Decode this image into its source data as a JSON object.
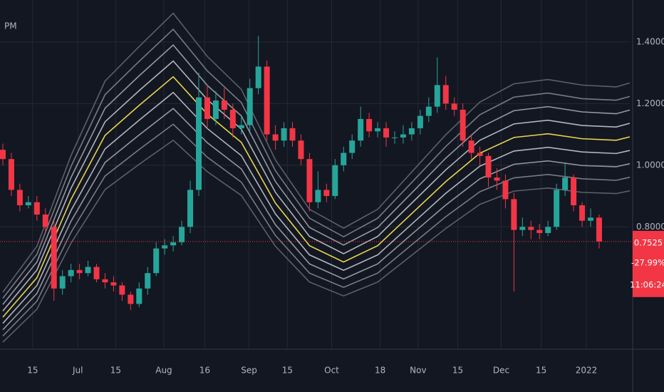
{
  "chart_data": {
    "type": "candlestick",
    "header_text": "PM",
    "up_color": "#26a69a",
    "down_color": "#f23645",
    "grid": true,
    "ylim": [
      0.403,
      1.536
    ],
    "yticks": [
      {
        "value": 0.8,
        "label": "0.8000"
      },
      {
        "value": 1.0,
        "label": "1.0000"
      },
      {
        "value": 1.2,
        "label": "1.2000"
      },
      {
        "value": 1.4,
        "label": "1.4000"
      }
    ],
    "xlim": [
      -0.333,
      73.6
    ],
    "xticks": [
      {
        "value": 3.5,
        "label": "15"
      },
      {
        "value": 8.8,
        "label": "Jul"
      },
      {
        "value": 13.25,
        "label": "15"
      },
      {
        "value": 18.9,
        "label": "Aug"
      },
      {
        "value": 23.7,
        "label": "16"
      },
      {
        "value": 28.9,
        "label": "Sep"
      },
      {
        "value": 33.4,
        "label": "15"
      },
      {
        "value": 38.6,
        "label": "Oct"
      },
      {
        "value": 44.3,
        "label": "18"
      },
      {
        "value": 48.75,
        "label": "Nov"
      },
      {
        "value": 53.4,
        "label": "15"
      },
      {
        "value": 58.5,
        "label": "Dec"
      },
      {
        "value": 63.2,
        "label": "15"
      },
      {
        "value": 68.5,
        "label": "2022"
      }
    ],
    "open": [
      1.05,
      1.02,
      0.92,
      0.87,
      0.88,
      0.84,
      0.8,
      0.6,
      0.64,
      0.66,
      0.65,
      0.67,
      0.63,
      0.62,
      0.61,
      0.58,
      0.55,
      0.6,
      0.65,
      0.73,
      0.74,
      0.75,
      0.8,
      0.92,
      1.22,
      1.15,
      1.21,
      1.18,
      1.12,
      1.13,
      1.25,
      1.32,
      1.1,
      1.08,
      1.12,
      1.08,
      1.02,
      0.88,
      0.92,
      0.9,
      1.0,
      1.04,
      1.08,
      1.15,
      1.11,
      1.12,
      1.09,
      1.09,
      1.1,
      1.12,
      1.16,
      1.19,
      1.26,
      1.2,
      1.18,
      1.08,
      1.04,
      1.03,
      0.96,
      0.95,
      0.89,
      0.79,
      0.8,
      0.79,
      0.78,
      0.8,
      0.92,
      0.96,
      0.87,
      0.82,
      0.83
    ],
    "high": [
      1.07,
      1.04,
      0.94,
      0.9,
      0.9,
      0.86,
      0.82,
      0.66,
      0.68,
      0.68,
      0.69,
      0.68,
      0.65,
      0.64,
      0.62,
      0.59,
      0.62,
      0.67,
      0.75,
      0.76,
      0.77,
      0.82,
      0.95,
      1.3,
      1.26,
      1.24,
      1.25,
      1.2,
      1.16,
      1.28,
      1.42,
      1.34,
      1.13,
      1.14,
      1.14,
      1.1,
      1.04,
      0.98,
      0.94,
      1.02,
      1.06,
      1.1,
      1.19,
      1.17,
      1.14,
      1.14,
      1.11,
      1.13,
      1.14,
      1.18,
      1.22,
      1.35,
      1.29,
      1.22,
      1.2,
      1.1,
      1.06,
      1.04,
      0.99,
      0.97,
      0.91,
      0.83,
      0.82,
      0.81,
      0.82,
      0.94,
      1.01,
      0.97,
      0.88,
      0.86,
      0.84
    ],
    "low": [
      1.0,
      0.9,
      0.85,
      0.86,
      0.82,
      0.78,
      0.56,
      0.58,
      0.62,
      0.63,
      0.64,
      0.62,
      0.6,
      0.59,
      0.56,
      0.53,
      0.54,
      0.58,
      0.64,
      0.71,
      0.72,
      0.74,
      0.78,
      0.9,
      1.12,
      1.13,
      1.15,
      1.09,
      1.1,
      1.11,
      1.23,
      1.08,
      1.05,
      1.06,
      1.06,
      1.0,
      0.85,
      0.86,
      0.88,
      0.89,
      0.98,
      1.02,
      1.06,
      1.09,
      1.09,
      1.06,
      1.07,
      1.07,
      1.08,
      1.1,
      1.14,
      1.17,
      1.18,
      1.16,
      1.06,
      1.02,
      1.0,
      0.93,
      0.92,
      0.86,
      0.59,
      0.77,
      0.76,
      0.76,
      0.77,
      0.79,
      0.9,
      0.85,
      0.8,
      0.8,
      0.73
    ],
    "close": [
      1.02,
      0.92,
      0.87,
      0.88,
      0.84,
      0.8,
      0.6,
      0.64,
      0.66,
      0.65,
      0.67,
      0.63,
      0.62,
      0.61,
      0.58,
      0.55,
      0.6,
      0.65,
      0.73,
      0.74,
      0.75,
      0.8,
      0.92,
      1.22,
      1.15,
      1.21,
      1.18,
      1.12,
      1.13,
      1.25,
      1.32,
      1.1,
      1.08,
      1.12,
      1.08,
      1.02,
      0.88,
      0.92,
      0.9,
      1.0,
      1.04,
      1.08,
      1.15,
      1.11,
      1.12,
      1.09,
      1.09,
      1.1,
      1.12,
      1.16,
      1.19,
      1.26,
      1.2,
      1.18,
      1.08,
      1.04,
      1.03,
      0.96,
      0.95,
      0.89,
      0.79,
      0.8,
      0.79,
      0.78,
      0.8,
      0.92,
      0.96,
      0.87,
      0.82,
      0.83,
      0.7525
    ],
    "band_x": [
      0,
      4,
      8,
      12,
      16,
      20,
      24,
      28,
      32,
      36,
      40,
      44,
      48,
      52,
      56,
      60,
      64,
      68,
      72,
      73.6
    ],
    "bands": [
      {
        "color": "#5d606b",
        "values": [
          0.426,
          0.533,
          0.747,
          0.921,
          1.003,
          1.081,
          0.979,
          0.902,
          0.737,
          0.621,
          0.576,
          0.621,
          0.708,
          0.795,
          0.873,
          0.916,
          0.926,
          0.912,
          0.908,
          0.917
        ]
      },
      {
        "color": "#787b86",
        "values": [
          0.446,
          0.559,
          0.782,
          0.965,
          1.051,
          1.133,
          1.026,
          0.945,
          0.772,
          0.65,
          0.604,
          0.65,
          0.742,
          0.833,
          0.914,
          0.959,
          0.97,
          0.956,
          0.951,
          0.961
        ]
      },
      {
        "color": "#9598a1",
        "values": [
          0.466,
          0.584,
          0.818,
          1.009,
          1.098,
          1.184,
          1.073,
          0.988,
          0.807,
          0.68,
          0.631,
          0.68,
          0.776,
          0.871,
          0.956,
          1.003,
          1.014,
          0.999,
          0.995,
          1.005
        ]
      },
      {
        "color": "#b2b5be",
        "values": [
          0.487,
          0.61,
          0.853,
          1.053,
          1.146,
          1.236,
          1.119,
          1.031,
          0.842,
          0.709,
          0.659,
          0.709,
          0.809,
          0.909,
          0.997,
          1.046,
          1.058,
          1.043,
          1.038,
          1.048
        ]
      },
      {
        "color": "#e8d44d",
        "values": [
          0.507,
          0.635,
          0.889,
          1.097,
          1.194,
          1.287,
          1.166,
          1.074,
          0.877,
          0.739,
          0.686,
          0.739,
          0.843,
          0.947,
          1.039,
          1.09,
          1.102,
          1.086,
          1.081,
          1.092
        ]
      },
      {
        "color": "#b2b5be",
        "values": [
          0.527,
          0.66,
          0.925,
          1.141,
          1.242,
          1.338,
          1.213,
          1.117,
          0.912,
          0.769,
          0.713,
          0.769,
          0.877,
          0.985,
          1.081,
          1.134,
          1.146,
          1.129,
          1.124,
          1.136
        ]
      },
      {
        "color": "#9598a1",
        "values": [
          0.548,
          0.686,
          0.96,
          1.185,
          1.29,
          1.39,
          1.259,
          1.16,
          0.947,
          0.798,
          0.741,
          0.798,
          0.91,
          1.023,
          1.122,
          1.177,
          1.19,
          1.173,
          1.167,
          1.179
        ]
      },
      {
        "color": "#787b86",
        "values": [
          0.568,
          0.711,
          0.996,
          1.229,
          1.337,
          1.441,
          1.306,
          1.203,
          0.982,
          0.828,
          0.768,
          0.828,
          0.944,
          1.061,
          1.164,
          1.221,
          1.234,
          1.216,
          1.211,
          1.223
        ]
      },
      {
        "color": "#5d606b",
        "values": [
          0.588,
          0.737,
          1.031,
          1.273,
          1.385,
          1.493,
          1.353,
          1.246,
          1.017,
          0.857,
          0.796,
          0.857,
          0.978,
          1.099,
          1.205,
          1.264,
          1.278,
          1.26,
          1.254,
          1.267
        ]
      }
    ],
    "price_tag": {
      "price": 0.7525,
      "change": "-27.99%",
      "countdown": "11:06:24",
      "color": "#f23645"
    }
  }
}
